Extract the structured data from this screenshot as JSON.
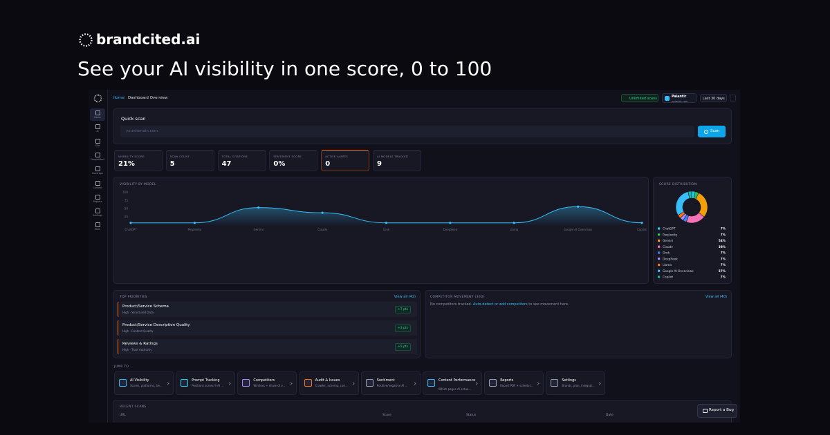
{
  "brand": {
    "name": "brandcited.ai"
  },
  "headline": "See your AI visibility in one score, 0 to 100",
  "sidebar": [
    "Home",
    "AI",
    "Site",
    "Competitors",
    "Coverage",
    "Content",
    "Reports",
    "Settings",
    "Team"
  ],
  "breadcrumb": [
    "Home",
    "Dashboard Overview"
  ],
  "topbar": {
    "plan": "Unlimited scans",
    "brand": "Palantir",
    "domain": "palantir.com",
    "range": "Last 30 days"
  },
  "quick_scan": {
    "title": "Quick scan",
    "placeholder": "yourdomain.com",
    "button": "Scan"
  },
  "stats": [
    {
      "label": "VISIBILITY SCORE",
      "value": "21%"
    },
    {
      "label": "SCAN COUNT",
      "value": "5"
    },
    {
      "label": "TOTAL CITATIONS",
      "value": "47"
    },
    {
      "label": "SENTIMENT SCORE",
      "value": "0%"
    },
    {
      "label": "ACTIVE ALERTS",
      "value": "0"
    },
    {
      "label": "AI MODELS TRACKED",
      "value": "9"
    }
  ],
  "priorities": {
    "title": "TOP PRIORITIES",
    "link": "View all (42)",
    "items": [
      {
        "title": "Product/Service Schema",
        "meta": "High · Structured Data",
        "gain": "+7 pts"
      },
      {
        "title": "Product/Service Description Quality",
        "meta": "High · Content Quality",
        "gain": "+3 pts"
      },
      {
        "title": "Reviews & Ratings",
        "meta": "High · Trust Authority",
        "gain": "+5 pts"
      }
    ]
  },
  "competitors": {
    "title": "COMPETITOR MOVEMENT (30D)",
    "link": "View all (40)",
    "empty": [
      "No competitors tracked. ",
      "Auto-detect or add competitors",
      " to see movement here."
    ]
  },
  "jump": {
    "title": "JUMP TO",
    "items": [
      {
        "title": "AI Visibility",
        "desc": "Scores, platforms, tre..."
      },
      {
        "title": "Prompt Tracking",
        "desc": "Positions across 9 AI ..."
      },
      {
        "title": "Competitors",
        "desc": "Win/loss + share of v..."
      },
      {
        "title": "Audit & Issues",
        "desc": "Crawler, schema, con..."
      },
      {
        "title": "Sentiment",
        "desc": "Positive/negative AI ..."
      },
      {
        "title": "Content Performance",
        "desc": "Which pages AI actua..."
      },
      {
        "title": "Reports",
        "desc": "Export PDF + schedul..."
      },
      {
        "title": "Settings",
        "desc": "Brands, plan, integrat..."
      }
    ]
  },
  "recent": {
    "title": "RECENT SCANS",
    "columns": [
      "URL",
      "Score",
      "Status",
      "Date"
    ]
  },
  "report_bug": "Report a Bug",
  "chart_data": [
    {
      "type": "line",
      "title": "VISIBILITY BY MODEL",
      "categories": [
        "ChatGPT",
        "Perplexity",
        "Gemini",
        "Claude",
        "Grok",
        "DeepSeek",
        "Llama",
        "Google AI Overviews",
        "Copilot"
      ],
      "series": [
        {
          "name": "Visibility",
          "color": "#38bdf8",
          "values": [
            7,
            7,
            54,
            38,
            7,
            7,
            7,
            57,
            7
          ]
        }
      ],
      "ylim": [
        0,
        100
      ],
      "yticks": [
        25,
        50,
        75,
        100
      ],
      "grid": false
    },
    {
      "type": "pie",
      "title": "SCORE DISTRIBUTION",
      "categories": [
        "ChatGPT",
        "Perplexity",
        "Gemini",
        "Claude",
        "Grok",
        "DeepSeek",
        "Llama",
        "Google AI Overviews",
        "Copilot"
      ],
      "values": [
        7,
        7,
        54,
        38,
        7,
        7,
        7,
        57,
        7
      ],
      "value_labels": [
        "7%",
        "7%",
        "54%",
        "38%",
        "7%",
        "7%",
        "7%",
        "57%",
        "7%"
      ],
      "colors": [
        "#22d3ee",
        "#22c55e",
        "#f59e0b",
        "#f472b6",
        "#3b82f6",
        "#a78bfa",
        "#f97316",
        "#38bdf8",
        "#14b8a6"
      ],
      "donut": true
    }
  ]
}
